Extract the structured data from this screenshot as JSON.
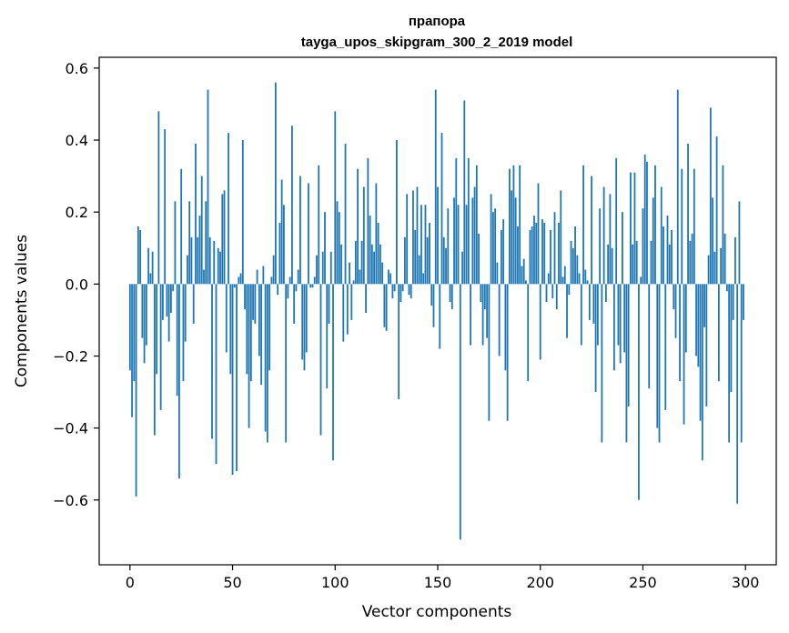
{
  "chart_data": {
    "type": "bar",
    "title": "прапора",
    "subtitle": "tayga_upos_skipgram_300_2_2019 model",
    "xlabel": "Vector components",
    "ylabel": "Components values",
    "xlim": [
      -15,
      315
    ],
    "ylim": [
      -0.78,
      0.63
    ],
    "xticks": [
      0,
      50,
      100,
      150,
      200,
      250,
      300
    ],
    "yticks": [
      -0.6,
      -0.4,
      -0.2,
      0.0,
      0.2,
      0.4,
      0.6
    ],
    "xtick_labels": [
      "0",
      "50",
      "100",
      "150",
      "200",
      "250",
      "300"
    ],
    "ytick_labels": [
      "−0.6",
      "−0.4",
      "−0.2",
      "0.0",
      "0.2",
      "0.4",
      "0.6"
    ],
    "grid": false,
    "legend": "none",
    "bar_color": "#1f77b4",
    "x": [
      0,
      1,
      2,
      3,
      4,
      5,
      6,
      7,
      8,
      9,
      10,
      11,
      12,
      13,
      14,
      15,
      16,
      17,
      18,
      19,
      20,
      21,
      22,
      23,
      24,
      25,
      26,
      27,
      28,
      29,
      30,
      31,
      32,
      33,
      34,
      35,
      36,
      37,
      38,
      39,
      40,
      41,
      42,
      43,
      44,
      45,
      46,
      47,
      48,
      49,
      50,
      51,
      52,
      53,
      54,
      55,
      56,
      57,
      58,
      59,
      60,
      61,
      62,
      63,
      64,
      65,
      66,
      67,
      68,
      69,
      70,
      71,
      72,
      73,
      74,
      75,
      76,
      77,
      78,
      79,
      80,
      81,
      82,
      83,
      84,
      85,
      86,
      87,
      88,
      89,
      90,
      91,
      92,
      93,
      94,
      95,
      96,
      97,
      98,
      99,
      100,
      101,
      102,
      103,
      104,
      105,
      106,
      107,
      108,
      109,
      110,
      111,
      112,
      113,
      114,
      115,
      116,
      117,
      118,
      119,
      120,
      121,
      122,
      123,
      124,
      125,
      126,
      127,
      128,
      129,
      130,
      131,
      132,
      133,
      134,
      135,
      136,
      137,
      138,
      139,
      140,
      141,
      142,
      143,
      144,
      145,
      146,
      147,
      148,
      149,
      150,
      151,
      152,
      153,
      154,
      155,
      156,
      157,
      158,
      159,
      160,
      161,
      162,
      163,
      164,
      165,
      166,
      167,
      168,
      169,
      170,
      171,
      172,
      173,
      174,
      175,
      176,
      177,
      178,
      179,
      180,
      181,
      182,
      183,
      184,
      185,
      186,
      187,
      188,
      189,
      190,
      191,
      192,
      193,
      194,
      195,
      196,
      197,
      198,
      199,
      200,
      201,
      202,
      203,
      204,
      205,
      206,
      207,
      208,
      209,
      210,
      211,
      212,
      213,
      214,
      215,
      216,
      217,
      218,
      219,
      220,
      221,
      222,
      223,
      224,
      225,
      226,
      227,
      228,
      229,
      230,
      231,
      232,
      233,
      234,
      235,
      236,
      237,
      238,
      239,
      240,
      241,
      242,
      243,
      244,
      245,
      246,
      247,
      248,
      249,
      250,
      251,
      252,
      253,
      254,
      255,
      256,
      257,
      258,
      259,
      260,
      261,
      262,
      263,
      264,
      265,
      266,
      267,
      268,
      269,
      270,
      271,
      272,
      273,
      274,
      275,
      276,
      277,
      278,
      279,
      280,
      281,
      282,
      283,
      284,
      285,
      286,
      287,
      288,
      289,
      290,
      291,
      292,
      293,
      294,
      295,
      296,
      297,
      298,
      299
    ],
    "values": [
      -0.24,
      -0.37,
      -0.27,
      -0.59,
      0.16,
      0.15,
      -0.15,
      -0.22,
      -0.17,
      0.1,
      0.03,
      0.09,
      -0.42,
      -0.25,
      0.48,
      -0.35,
      -0.1,
      0.43,
      -0.09,
      -0.16,
      -0.08,
      -0.02,
      0.23,
      -0.31,
      -0.54,
      0.32,
      -0.27,
      -0.16,
      0.08,
      0.23,
      0.13,
      -0.11,
      0.39,
      0.13,
      0.19,
      0.3,
      0.04,
      0.23,
      0.54,
      0.13,
      -0.43,
      0.12,
      -0.5,
      0.1,
      0.09,
      0.25,
      0.26,
      -0.19,
      0.42,
      -0.25,
      -0.53,
      -0.01,
      -0.52,
      0.02,
      0.03,
      0.4,
      -0.07,
      -0.25,
      -0.4,
      -0.27,
      -0.1,
      -0.11,
      0.04,
      -0.2,
      -0.28,
      0.05,
      -0.41,
      -0.44,
      -0.24,
      0.02,
      0.08,
      0.56,
      -0.03,
      0.17,
      0.29,
      0.22,
      -0.44,
      -0.04,
      0.02,
      0.44,
      -0.11,
      -0.02,
      0.04,
      0.3,
      -0.21,
      -0.24,
      -0.19,
      0.28,
      -0.01,
      -0.01,
      0.02,
      0.08,
      0.33,
      -0.42,
      0.09,
      0.2,
      -0.29,
      -0.11,
      0.09,
      -0.49,
      0.48,
      0.23,
      0.2,
      0.11,
      -0.16,
      0.39,
      -0.14,
      0.06,
      -0.1,
      0.01,
      0.12,
      0.32,
      0.04,
      0.12,
      0.27,
      -0.08,
      0.35,
      0.19,
      0.11,
      0.09,
      0.28,
      0.17,
      0.11,
      0.06,
      -0.12,
      -0.13,
      0.04,
      0.03,
      -0.04,
      -0.02,
      0.4,
      -0.32,
      -0.05,
      -0.02,
      0.13,
      0.25,
      -0.03,
      -0.04,
      0.26,
      0.15,
      0.27,
      0.08,
      0.22,
      0.03,
      0.22,
      0.13,
      0.17,
      -0.06,
      -0.12,
      0.54,
      0.27,
      -0.18,
      0.42,
      0.13,
      0.1,
      0.21,
      -0.05,
      -0.07,
      0.24,
      0.35,
      0.22,
      -0.71,
      0.09,
      0.51,
      0.22,
      0.35,
      -0.17,
      0.24,
      0.27,
      0.33,
      0.14,
      -0.05,
      -0.17,
      -0.07,
      -0.15,
      -0.38,
      0.25,
      0.2,
      0.21,
      0.06,
      -0.2,
      0.15,
      0.18,
      -0.24,
      -0.38,
      0.32,
      0.26,
      0.33,
      0.24,
      0.16,
      0.33,
      0.05,
      0.07,
      0.01,
      -0.27,
      0.15,
      0.16,
      0.19,
      0.17,
      0.28,
      -0.21,
      0.18,
      0.17,
      -0.05,
      0.03,
      0.15,
      -0.04,
      0.2,
      -0.07,
      0.17,
      0.26,
      0.02,
      0.05,
      -0.15,
      -0.03,
      0.12,
      0.1,
      0.16,
      0.08,
      0.03,
      -0.17,
      0.33,
      0.04,
      0.01,
      -0.1,
      0.3,
      -0.11,
      -0.3,
      -0.17,
      0.21,
      -0.44,
      0.27,
      -0.05,
      0.11,
      0.25,
      0.1,
      -0.24,
      0.35,
      -0.17,
      -0.22,
      0.2,
      -0.19,
      -0.44,
      -0.34,
      0.31,
      0.11,
      0.31,
      0.12,
      -0.6,
      0.02,
      0.21,
      0.36,
      0.34,
      -0.29,
      0.12,
      0.24,
      0.33,
      -0.4,
      -0.44,
      0.27,
      0.16,
      -0.35,
      0.19,
      0.11,
      0.15,
      -0.07,
      -0.15,
      0.54,
      -0.27,
      0.32,
      -0.39,
      -0.19,
      0.39,
      0.12,
      0.14,
      0.32,
      -0.2,
      -0.23,
      -0.38,
      -0.49,
      -0.12,
      -0.34,
      0.08,
      0.49,
      0.24,
      0.09,
      0.41,
      -0.27,
      0.1,
      0.33,
      0.14,
      -0.02,
      -0.44,
      -0.3,
      -0.1,
      0.13,
      -0.61,
      0.23,
      -0.44,
      -0.1
    ]
  }
}
